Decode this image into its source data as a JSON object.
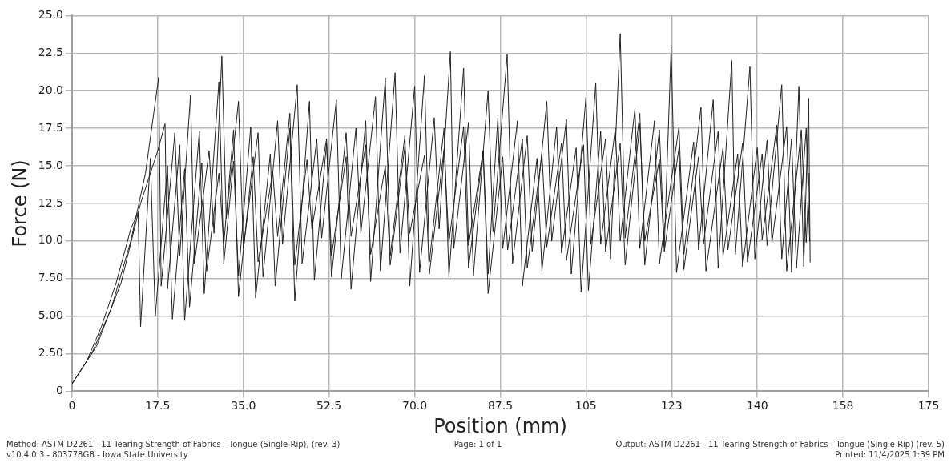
{
  "chart_data": {
    "type": "line",
    "xlabel": "Position (mm)",
    "ylabel": "Force (N)",
    "xlim": [
      0,
      175
    ],
    "xticks": [
      {
        "value": 0,
        "label": "0"
      },
      {
        "value": 17.5,
        "label": "17.5"
      },
      {
        "value": 35,
        "label": "35.0"
      },
      {
        "value": 52.5,
        "label": "52.5"
      },
      {
        "value": 70,
        "label": "70.0"
      },
      {
        "value": 87.5,
        "label": "87.5"
      },
      {
        "value": 105,
        "label": "105"
      },
      {
        "value": 122.5,
        "label": "123"
      },
      {
        "value": 140,
        "label": "140"
      },
      {
        "value": 157.5,
        "label": "158"
      },
      {
        "value": 175,
        "label": "175"
      }
    ],
    "ylim": [
      0,
      25
    ],
    "yticks": [
      {
        "value": 0,
        "label": "0"
      },
      {
        "value": 2.5,
        "label": "2.50"
      },
      {
        "value": 5,
        "label": "5.00"
      },
      {
        "value": 7.5,
        "label": "7.50"
      },
      {
        "value": 10,
        "label": "10.0"
      },
      {
        "value": 12.5,
        "label": "12.5"
      },
      {
        "value": 15,
        "label": "15.0"
      },
      {
        "value": 17.5,
        "label": "17.5"
      },
      {
        "value": 20,
        "label": "20.0"
      },
      {
        "value": 22.5,
        "label": "22.5"
      },
      {
        "value": 25,
        "label": "25.0"
      }
    ],
    "grid": true,
    "legend": false,
    "marker": "none",
    "line_style": "solid",
    "annotations": [
      "Method: ASTM D2261 - 11 Tearing Strength of Fabrics - Tongue (Single Rip), (rev. 3)",
      "v10.4.0.3 - 803778GB - Iowa State University",
      "Page: 1 of 1",
      "Output: ASTM D2261 - 11 Tearing Strength of Fabrics - Tongue (Single Rip) (rev. 5)",
      "Printed: 11/4/2025 1:39 PM"
    ],
    "series": [
      {
        "color": "#222222",
        "x": [
          0,
          4,
          8,
          12,
          15,
          17.7,
          18.2,
          21,
          22,
          24.2,
          25,
          28,
          29,
          30.6,
          31.5,
          34,
          35,
          38,
          39,
          42,
          43,
          46,
          47,
          50,
          51,
          54,
          55,
          58,
          59,
          62,
          63,
          66,
          67,
          70,
          71,
          74,
          75,
          77.3,
          78,
          81,
          82,
          85,
          86,
          88.9,
          90,
          93,
          94,
          97,
          98,
          101,
          102,
          105,
          106,
          109,
          110,
          112,
          113,
          116,
          117,
          120,
          121,
          122.4,
          123.5,
          127,
          128,
          131,
          132,
          134.8,
          135.5,
          138.5,
          139.5,
          142,
          143,
          146,
          147,
          148.5,
          149.5,
          150.5,
          150.8
        ],
        "values": [
          0.5,
          2.5,
          5.5,
          10,
          14.5,
          20.9,
          7.0,
          17.2,
          9.0,
          19.7,
          8.5,
          16.0,
          10.5,
          22.3,
          11.5,
          19.3,
          9.5,
          17.2,
          7.6,
          18.0,
          9.8,
          20.4,
          8.5,
          16.8,
          10.2,
          19.4,
          7.5,
          17.5,
          10.5,
          19.6,
          8.0,
          21.2,
          9.2,
          20.3,
          7.9,
          18.2,
          10.8,
          22.6,
          9.5,
          17.9,
          7.7,
          20.0,
          10.6,
          22.4,
          8.5,
          17.0,
          9.3,
          19.3,
          10.0,
          18.1,
          7.8,
          19.6,
          9.8,
          16.8,
          8.8,
          23.8,
          10.2,
          18.5,
          8.4,
          17.4,
          9.6,
          22.9,
          7.9,
          16.6,
          9.4,
          19.4,
          8.2,
          22.0,
          9.1,
          21.6,
          8.8,
          16.7,
          9.9,
          17.6,
          7.9,
          20.3,
          8.3,
          19.5,
          8.6
        ]
      },
      {
        "color": "#222222",
        "x": [
          0,
          5,
          10,
          14,
          17.5,
          19,
          19.5,
          22,
          23,
          26,
          27,
          30,
          31,
          33,
          34,
          36.5,
          37.5,
          40.5,
          41.5,
          44.5,
          45.5,
          48.5,
          49.5,
          52,
          53,
          56,
          57,
          60,
          61,
          64,
          65,
          68,
          69,
          72,
          73,
          76,
          77,
          80,
          81,
          84,
          85,
          87,
          88,
          91,
          92,
          95,
          96,
          99,
          100,
          103,
          104,
          107,
          108,
          111,
          112,
          115,
          116,
          119,
          120,
          124,
          125,
          128.5,
          129.5,
          133,
          134,
          137,
          138,
          141,
          142,
          145,
          146,
          149,
          150,
          150.6
        ],
        "values": [
          0.5,
          3,
          7.2,
          12.5,
          16.0,
          17.8,
          6.8,
          16.4,
          4.7,
          17.3,
          6.5,
          20.6,
          8.5,
          15.3,
          7.7,
          17.6,
          6.2,
          15.8,
          7.0,
          17.5,
          6.0,
          19.3,
          7.4,
          16.5,
          9.0,
          15.6,
          6.8,
          18.0,
          7.3,
          20.8,
          9.0,
          17.0,
          7.0,
          21.0,
          8.6,
          17.5,
          7.6,
          21.5,
          9.7,
          16.0,
          7.8,
          18.2,
          9.5,
          18.0,
          7.0,
          15.5,
          8.0,
          17.6,
          9.2,
          16.2,
          6.6,
          20.5,
          9.8,
          17.5,
          10.0,
          18.8,
          9.5,
          18.0,
          8.5,
          17.6,
          9.1,
          18.9,
          8.0,
          16.2,
          9.4,
          16.5,
          8.6,
          15.8,
          9.7,
          20.4,
          8.0,
          17.4,
          9.9,
          14.5
        ]
      },
      {
        "color": "#222222",
        "x": [
          0,
          3,
          6,
          9,
          12,
          13.5,
          14,
          16,
          17,
          19.5,
          20.5,
          23,
          24,
          26.5,
          27.5,
          30,
          31,
          33,
          34,
          37,
          38,
          41,
          42,
          44.5,
          45.5,
          48,
          49,
          52,
          53,
          56,
          57,
          60,
          61,
          64,
          65,
          68,
          69,
          72,
          73,
          76,
          77,
          80,
          81,
          84,
          85,
          88,
          89,
          92,
          93,
          96,
          97,
          100,
          101,
          104.5,
          105.5,
          108,
          109,
          112,
          113,
          116,
          117,
          120,
          121,
          124,
          125,
          128,
          129,
          132,
          133,
          136,
          137,
          140,
          141,
          144,
          145,
          147,
          148,
          150,
          150.7
        ],
        "values": [
          0.5,
          2.0,
          4.3,
          7.2,
          10.8,
          11.9,
          4.3,
          15.5,
          5.0,
          15.0,
          4.8,
          14.8,
          5.6,
          15.2,
          8.0,
          14.5,
          9.8,
          17.4,
          6.3,
          15.6,
          8.6,
          14.6,
          10.3,
          18.5,
          8.4,
          15.4,
          10.8,
          16.8,
          7.6,
          17.2,
          10.3,
          16.4,
          9.1,
          15.0,
          8.4,
          16.3,
          10.5,
          15.7,
          7.8,
          16.1,
          9.9,
          17.6,
          8.2,
          16.0,
          6.5,
          15.6,
          9.4,
          16.8,
          8.2,
          15.8,
          9.6,
          16.5,
          8.7,
          16.4,
          6.7,
          17.3,
          9.3,
          16.5,
          8.4,
          17.8,
          10.0,
          15.4,
          9.3,
          16.2,
          8.1,
          15.6,
          9.8,
          17.3,
          9.0,
          15.8,
          8.3,
          16.2,
          10.1,
          17.7,
          8.8,
          16.8,
          8.2,
          17.5,
          10.0
        ]
      }
    ]
  }
}
